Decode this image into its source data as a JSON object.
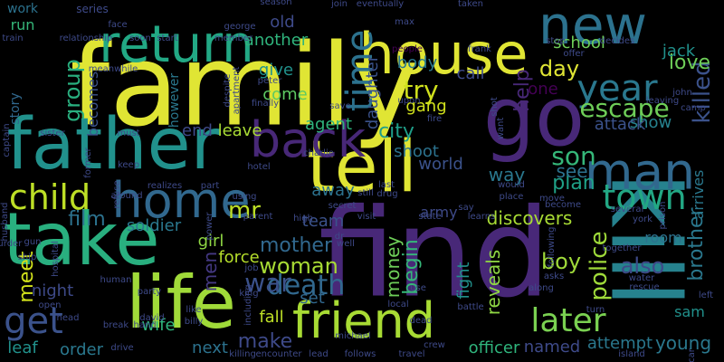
{
  "palette": {
    "yellow": "#e0e534",
    "lime": "#a8db34",
    "green": "#5ec962",
    "teal": "#21918c",
    "blue": "#31688e",
    "indigo": "#3b528b",
    "purple": "#440154",
    "violet": "#482878",
    "dim": "#3e4a89"
  },
  "words": [
    {
      "text": "family",
      "color": "#e0e534",
      "rotate": 0
    },
    {
      "text": "find",
      "color": "#482878",
      "rotate": 0
    },
    {
      "text": "kill",
      "color": "#26828e",
      "rotate": 90
    },
    {
      "text": "take",
      "color": "#29af7f",
      "rotate": 0
    },
    {
      "text": "father",
      "color": "#21918c",
      "rotate": 0
    },
    {
      "text": "life",
      "color": "#a0da39",
      "rotate": 0
    },
    {
      "text": "tell",
      "color": "#e0e534",
      "rotate": 0
    },
    {
      "text": "go",
      "color": "#482878",
      "rotate": 0
    },
    {
      "text": "house",
      "color": "#e0e534",
      "rotate": 0
    },
    {
      "text": "return",
      "color": "#22a884",
      "rotate": 0
    },
    {
      "text": "new",
      "color": "#2c728e",
      "rotate": 0
    },
    {
      "text": "back",
      "color": "#482878",
      "rotate": 0
    },
    {
      "text": "home",
      "color": "#31688e",
      "rotate": 0
    },
    {
      "text": "friend",
      "color": "#a8db34",
      "rotate": 0
    },
    {
      "text": "man",
      "color": "#31688e",
      "rotate": 0
    },
    {
      "text": "town",
      "color": "#22a884",
      "rotate": 0
    },
    {
      "text": "year",
      "color": "#2a788e",
      "rotate": 0
    },
    {
      "text": "child",
      "color": "#bddf26",
      "rotate": 0
    },
    {
      "text": "get",
      "color": "#3b528b",
      "rotate": 0
    },
    {
      "text": "time",
      "color": "#2c728e",
      "rotate": 270
    },
    {
      "text": "later",
      "color": "#7ad151",
      "rotate": 0
    },
    {
      "text": "escape",
      "color": "#6ece58",
      "rotate": 0
    },
    {
      "text": "son",
      "color": "#35b779",
      "rotate": 0
    },
    {
      "text": "death",
      "color": "#31688e",
      "rotate": 0
    },
    {
      "text": "woman",
      "color": "#a8db34",
      "rotate": 0
    },
    {
      "text": "mother",
      "color": "#31688e",
      "rotate": 0
    },
    {
      "text": "war",
      "color": "#3b528b",
      "rotate": 0
    },
    {
      "text": "make",
      "color": "#3e4a89",
      "rotate": 0
    },
    {
      "text": "police",
      "color": "#9fda3a",
      "rotate": 270
    },
    {
      "text": "killed",
      "color": "#3b528b",
      "rotate": 270
    },
    {
      "text": "brother",
      "color": "#2a788e",
      "rotate": 270
    },
    {
      "text": "group",
      "color": "#29af7f",
      "rotate": 270
    },
    {
      "text": "day",
      "color": "#e0e534",
      "rotate": 0
    },
    {
      "text": "help",
      "color": "#482878",
      "rotate": 270
    },
    {
      "text": "love",
      "color": "#6ece58",
      "rotate": 0
    },
    {
      "text": "try",
      "color": "#d0e11c",
      "rotate": 0
    },
    {
      "text": "film",
      "color": "#2c728e",
      "rotate": 0
    },
    {
      "text": "plan",
      "color": "#1fa187",
      "rotate": 0
    },
    {
      "text": "see",
      "color": "#2c728e",
      "rotate": 0
    },
    {
      "text": "way",
      "color": "#2a788e",
      "rotate": 0
    },
    {
      "text": "city",
      "color": "#1f9e89",
      "rotate": 0
    },
    {
      "text": "meet",
      "color": "#d2e21b",
      "rotate": 270
    },
    {
      "text": "men",
      "color": "#443983",
      "rotate": 270
    },
    {
      "text": "girl",
      "color": "#8fd744",
      "rotate": 0
    },
    {
      "text": "force",
      "color": "#b5de2b",
      "rotate": 0
    },
    {
      "text": "also",
      "color": "#3e4a89",
      "rotate": 0
    },
    {
      "text": "boy",
      "color": "#9fda3a",
      "rotate": 0
    },
    {
      "text": "reveals",
      "color": "#8fd744",
      "rotate": 270
    },
    {
      "text": "money",
      "color": "#6ece58",
      "rotate": 270
    },
    {
      "text": "begin",
      "color": "#35b779",
      "rotate": 270
    },
    {
      "text": "fight",
      "color": "#21918c",
      "rotate": 270
    },
    {
      "text": "mr",
      "color": "#bddf26",
      "rotate": 0
    },
    {
      "text": "come",
      "color": "#5ec962",
      "rotate": 0
    },
    {
      "text": "give",
      "color": "#21918c",
      "rotate": 0
    },
    {
      "text": "another",
      "color": "#2fb47c",
      "rotate": 0
    },
    {
      "text": "old",
      "color": "#3e4a89",
      "rotate": 0
    },
    {
      "text": "body",
      "color": "#2a788e",
      "rotate": 0
    },
    {
      "text": "daughter",
      "color": "#3b528b",
      "rotate": 270
    },
    {
      "text": "agent",
      "color": "#2fb47c",
      "rotate": 0
    },
    {
      "text": "gang",
      "color": "#d0e11c",
      "rotate": 0
    },
    {
      "text": "call",
      "color": "#3e4a89",
      "rotate": 0
    },
    {
      "text": "school",
      "color": "#6ece58",
      "rotate": 0
    },
    {
      "text": "jack",
      "color": "#21918c",
      "rotate": 0
    },
    {
      "text": "one",
      "color": "#440154",
      "rotate": 0
    },
    {
      "text": "show",
      "color": "#26828e",
      "rotate": 0
    },
    {
      "text": "attack",
      "color": "#3b528b",
      "rotate": 0
    },
    {
      "text": "arrives",
      "color": "#2a788e",
      "rotate": 270
    },
    {
      "text": "room",
      "color": "#2c728e",
      "rotate": 0
    },
    {
      "text": "young",
      "color": "#2a788e",
      "rotate": 0
    },
    {
      "text": "sam",
      "color": "#21918c",
      "rotate": 0
    },
    {
      "text": "attempt",
      "color": "#2a788e",
      "rotate": 0
    },
    {
      "text": "named",
      "color": "#3e4a89",
      "rotate": 0
    },
    {
      "text": "officer",
      "color": "#2fb47c",
      "rotate": 0
    },
    {
      "text": "discovers",
      "color": "#a8db34",
      "rotate": 0
    },
    {
      "text": "army",
      "color": "#3e4a89",
      "rotate": 0
    },
    {
      "text": "world",
      "color": "#3b528b",
      "rotate": 0
    },
    {
      "text": "shoot",
      "color": "#2c728e",
      "rotate": 0
    },
    {
      "text": "away",
      "color": "#2c728e",
      "rotate": 0
    },
    {
      "text": "team",
      "color": "#3b528b",
      "rotate": 0
    },
    {
      "text": "set",
      "color": "#31688e",
      "rotate": 0
    },
    {
      "text": "fall",
      "color": "#bddf26",
      "rotate": 0
    },
    {
      "text": "next",
      "color": "#2c728e",
      "rotate": 0
    },
    {
      "text": "wife",
      "color": "#2fb47c",
      "rotate": 0
    },
    {
      "text": "order",
      "color": "#2a788e",
      "rotate": 0
    },
    {
      "text": "leaf",
      "color": "#21918c",
      "rotate": 0
    },
    {
      "text": "night",
      "color": "#3e4a89",
      "rotate": 0
    },
    {
      "text": "end",
      "color": "#3e4a89",
      "rotate": 0
    },
    {
      "text": "leave",
      "color": "#a8db34",
      "rotate": 0
    },
    {
      "text": "soldier",
      "color": "#2a788e",
      "rotate": 0
    },
    {
      "text": "story",
      "color": "#31688e",
      "rotate": 270
    },
    {
      "text": "becomes",
      "color": "#3b528b",
      "rotate": 270
    },
    {
      "text": "however",
      "color": "#2a788e",
      "rotate": 270
    },
    {
      "text": "work",
      "color": "#2c728e",
      "rotate": 0
    },
    {
      "text": "run",
      "color": "#35b779",
      "rotate": 0
    },
    {
      "text": "series",
      "color": "#3e4a89",
      "rotate": 0
    },
    {
      "text": "train",
      "color": "#3e4a89",
      "rotate": 0
    },
    {
      "text": "relationship",
      "color": "#3e4a89",
      "rotate": 0
    },
    {
      "text": "face",
      "color": "#3e4a89",
      "rotate": 0
    },
    {
      "text": "soon",
      "color": "#3e4a89",
      "rotate": 0
    },
    {
      "text": "start",
      "color": "#3e4a89",
      "rotate": 0
    },
    {
      "text": "member",
      "color": "#3e4a89",
      "rotate": 0
    },
    {
      "text": "george",
      "color": "#3e4a89",
      "rotate": 0
    },
    {
      "text": "season",
      "color": "#3e4a89",
      "rotate": 0
    },
    {
      "text": "join",
      "color": "#3e4a89",
      "rotate": 0
    },
    {
      "text": "eventually",
      "color": "#3e4a89",
      "rotate": 0
    },
    {
      "text": "taken",
      "color": "#3e4a89",
      "rotate": 0
    },
    {
      "text": "max",
      "color": "#3e4a89",
      "rotate": 0
    },
    {
      "text": "people",
      "color": "#440154",
      "rotate": 0
    },
    {
      "text": "frank",
      "color": "#3e4a89",
      "rotate": 0
    },
    {
      "text": "stop",
      "color": "#3e4a89",
      "rotate": 0
    },
    {
      "text": "offer",
      "color": "#3e4a89",
      "rotate": 0
    },
    {
      "text": "decides",
      "color": "#3e4a89",
      "rotate": 0
    },
    {
      "text": "meanwhile",
      "color": "#3e4a89",
      "rotate": 0
    },
    {
      "text": "captain",
      "color": "#3e4a89",
      "rotate": 270
    },
    {
      "text": "sister",
      "color": "#3e4a89",
      "rotate": 0
    },
    {
      "text": "must",
      "color": "#3e4a89",
      "rotate": 0
    },
    {
      "text": "despite",
      "color": "#3e4a89",
      "rotate": 270
    },
    {
      "text": "apartment",
      "color": "#3e4a89",
      "rotate": 270
    },
    {
      "text": "peter",
      "color": "#3e4a89",
      "rotate": 0
    },
    {
      "text": "finally",
      "color": "#3e4a89",
      "rotate": 0
    },
    {
      "text": "save",
      "color": "#3e4a89",
      "rotate": 0
    },
    {
      "text": "upon",
      "color": "#3e4a89",
      "rotate": 0
    },
    {
      "text": "fire",
      "color": "#3e4a89",
      "rotate": 0
    },
    {
      "text": "shot",
      "color": "#3e4a89",
      "rotate": 270
    },
    {
      "text": "john",
      "color": "#3e4a89",
      "rotate": 0
    },
    {
      "text": "leaving",
      "color": "#3e4a89",
      "rotate": 0
    },
    {
      "text": "camp",
      "color": "#3e4a89",
      "rotate": 0
    },
    {
      "text": "want",
      "color": "#3e4a89",
      "rotate": 270
    },
    {
      "text": "keep",
      "color": "#3e4a89",
      "rotate": 0
    },
    {
      "text": "charlie",
      "color": "#3e4a89",
      "rotate": 0
    },
    {
      "text": "hotel",
      "color": "#3e4a89",
      "rotate": 0
    },
    {
      "text": "secret",
      "color": "#3e4a89",
      "rotate": 0
    },
    {
      "text": "still",
      "color": "#3e4a89",
      "rotate": 0
    },
    {
      "text": "last",
      "color": "#3e4a89",
      "rotate": 0
    },
    {
      "text": "drug",
      "color": "#3e4a89",
      "rotate": 0
    },
    {
      "text": "say",
      "color": "#3e4a89",
      "rotate": 0
    },
    {
      "text": "would",
      "color": "#3e4a89",
      "rotate": 0
    },
    {
      "text": "place",
      "color": "#3e4a89",
      "rotate": 0
    },
    {
      "text": "move",
      "color": "#3e4a89",
      "rotate": 0
    },
    {
      "text": "become",
      "color": "#3e4a89",
      "rotate": 0
    },
    {
      "text": "several",
      "color": "#3e4a89",
      "rotate": 0
    },
    {
      "text": "prison",
      "color": "#3e4a89",
      "rotate": 270
    },
    {
      "text": "husband",
      "color": "#3e4a89",
      "rotate": 270
    },
    {
      "text": "murder",
      "color": "#3e4a89",
      "rotate": 0
    },
    {
      "text": "gun",
      "color": "#3e4a89",
      "rotate": 0
    },
    {
      "text": "refuse",
      "color": "#3e4a89",
      "rotate": 270
    },
    {
      "text": "around",
      "color": "#3e4a89",
      "rotate": 0
    },
    {
      "text": "realizes",
      "color": "#3e4a89",
      "rotate": 0
    },
    {
      "text": "part",
      "color": "#3e4a89",
      "rotate": 0
    },
    {
      "text": "using",
      "color": "#3e4a89",
      "rotate": 0
    },
    {
      "text": "high",
      "color": "#3e4a89",
      "rotate": 0
    },
    {
      "text": "visit",
      "color": "#3e4a89",
      "rotate": 0
    },
    {
      "text": "state",
      "color": "#3e4a89",
      "rotate": 0
    },
    {
      "text": "learns",
      "color": "#3e4a89",
      "rotate": 0
    },
    {
      "text": "york",
      "color": "#3e4a89",
      "rotate": 0
    },
    {
      "text": "hospital",
      "color": "#3e4a89",
      "rotate": 270
    },
    {
      "text": "human",
      "color": "#3e4a89",
      "rotate": 0
    },
    {
      "text": "job",
      "color": "#3e4a89",
      "rotate": 0
    },
    {
      "text": "parent",
      "color": "#3e4a89",
      "rotate": 0
    },
    {
      "text": "well",
      "color": "#3e4a89",
      "rotate": 0
    },
    {
      "text": "following",
      "color": "#3e4a89",
      "rotate": 270
    },
    {
      "text": "together",
      "color": "#3e4a89",
      "rotate": 0
    },
    {
      "text": "water",
      "color": "#3e4a89",
      "rotate": 0
    },
    {
      "text": "rescue",
      "color": "#3e4a89",
      "rotate": 0
    },
    {
      "text": "left",
      "color": "#3e4a89",
      "rotate": 0
    },
    {
      "text": "party",
      "color": "#3e4a89",
      "rotate": 0
    },
    {
      "text": "king",
      "color": "#3e4a89",
      "rotate": 0
    },
    {
      "text": "use",
      "color": "#3e4a89",
      "rotate": 0
    },
    {
      "text": "along",
      "color": "#3e4a89",
      "rotate": 0
    },
    {
      "text": "asks",
      "color": "#3e4a89",
      "rotate": 0
    },
    {
      "text": "open",
      "color": "#3e4a89",
      "rotate": 0
    },
    {
      "text": "head",
      "color": "#3e4a89",
      "rotate": 0
    },
    {
      "text": "like",
      "color": "#3e4a89",
      "rotate": 0
    },
    {
      "text": "david",
      "color": "#3e4a89",
      "rotate": 0
    },
    {
      "text": "including",
      "color": "#3e4a89",
      "rotate": 270
    },
    {
      "text": "local",
      "color": "#3e4a89",
      "rotate": 0
    },
    {
      "text": "battle",
      "color": "#3e4a89",
      "rotate": 0
    },
    {
      "text": "break",
      "color": "#3e4a89",
      "rotate": 0
    },
    {
      "text": "hand",
      "color": "#3e4a89",
      "rotate": 0
    },
    {
      "text": "billy",
      "color": "#3e4a89",
      "rotate": 0
    },
    {
      "text": "dead",
      "color": "#3e4a89",
      "rotate": 0
    },
    {
      "text": "turn",
      "color": "#3e4a89",
      "rotate": 0
    },
    {
      "text": "michael",
      "color": "#3e4a89",
      "rotate": 0
    },
    {
      "text": "crew",
      "color": "#3e4a89",
      "rotate": 0
    },
    {
      "text": "drive",
      "color": "#3e4a89",
      "rotate": 0
    },
    {
      "text": "killing",
      "color": "#3e4a89",
      "rotate": 0
    },
    {
      "text": "encounter",
      "color": "#3e4a89",
      "rotate": 0
    },
    {
      "text": "lead",
      "color": "#3e4a89",
      "rotate": 0
    },
    {
      "text": "follows",
      "color": "#3e4a89",
      "rotate": 0
    },
    {
      "text": "travel",
      "color": "#3e4a89",
      "rotate": 0
    },
    {
      "text": "island",
      "color": "#3e4a89",
      "rotate": 0
    },
    {
      "text": "car",
      "color": "#3e4a89",
      "rotate": 270
    },
    {
      "text": "dr",
      "color": "#3e4a89",
      "rotate": 0
    },
    {
      "text": "power",
      "color": "#3e4a89",
      "rotate": 270
    },
    {
      "text": "former",
      "color": "#3e4a89",
      "rotate": 270
    },
    {
      "text": "ship",
      "color": "#3e4a89",
      "rotate": 0
    }
  ]
}
